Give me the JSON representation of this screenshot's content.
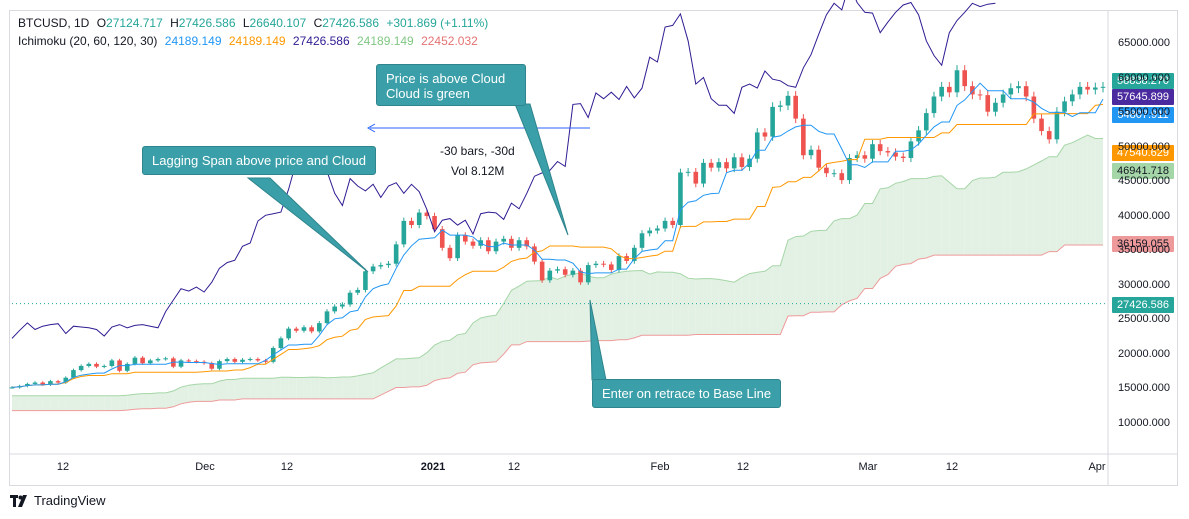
{
  "legend": {
    "symbol_line": "BTCUSD, 1D",
    "open_label": "O",
    "open": "27124.717",
    "high_label": "H",
    "high": "27426.586",
    "low_label": "L",
    "low": "26640.107",
    "close_label": "C",
    "close": "27426.586",
    "change": "+301.869 (+1.11%)",
    "indicator": "Ichimoku (20, 60, 120, 30)",
    "ind_values": [
      "24189.149",
      "24189.149",
      "27426.586",
      "24189.149",
      "22452.032"
    ]
  },
  "annotations": {
    "lagging": "Lagging Span above price and Cloud",
    "price_above_1": "Price is above Cloud",
    "price_above_2": "Cloud is green",
    "enter": "Enter on retrace to Base Line",
    "bars": "-30 bars, -30d",
    "vol": "Vol 8.12M"
  },
  "price_tags": [
    "58838.270",
    "57645.899",
    "54807.911",
    "47540.629",
    "46941.718",
    "36159.055",
    "27426.586"
  ],
  "brand": "TradingView",
  "colors": {
    "up": "#26a69a",
    "down": "#ef5350",
    "conversion": "#2196f3",
    "base": "#ff9800",
    "lagging": "#311b92",
    "span_a": "#a5d6a7",
    "span_b": "#ef9a9a",
    "cloud_bull": "#e3f1e4",
    "cloud_bear": "#fbe6e6",
    "callout": "#3a9fa8"
  },
  "chart_data": {
    "type": "candlestick",
    "ylim": [
      5000,
      70000
    ],
    "yticks": [
      "10000.000",
      "15000.000",
      "20000.000",
      "25000.000",
      "30000.000",
      "35000.000",
      "40000.000",
      "45000.000",
      "50000.000",
      "55000.000",
      "60000.000",
      "65000.000"
    ],
    "xticks": [
      "12",
      "Dec",
      "12",
      "2021",
      "12",
      "Feb",
      "12",
      "Mar",
      "12",
      "Apr"
    ],
    "closes": [
      15300,
      15500,
      15800,
      16000,
      15700,
      16200,
      16000,
      16700,
      17800,
      18400,
      18700,
      18300,
      18400,
      19200,
      17700,
      18700,
      19600,
      18800,
      19200,
      19400,
      19500,
      18300,
      19200,
      19100,
      19000,
      18800,
      18000,
      19100,
      19400,
      19000,
      19300,
      19400,
      19200,
      19000,
      21000,
      22400,
      23800,
      23500,
      24000,
      23400,
      24600,
      26300,
      27000,
      27300,
      29000,
      29400,
      32100,
      32800,
      33000,
      33200,
      36000,
      39400,
      38800,
      40600,
      40100,
      38200,
      35500,
      34000,
      37300,
      36400,
      35800,
      36600,
      35000,
      36400,
      36800,
      35500,
      36600,
      35700,
      33500,
      30800,
      32200,
      32400,
      31600,
      32200,
      30500,
      33000,
      33200,
      33100,
      32300,
      34300,
      33600,
      35500,
      37600,
      38000,
      38300,
      39400,
      38800,
      46400,
      46500,
      44800,
      47800,
      47100,
      47900,
      47000,
      48600,
      47200,
      48400,
      52200,
      51600,
      55900,
      56100,
      57500,
      54200,
      48900,
      49700,
      47100,
      46300,
      46300,
      45300,
      48500,
      48900,
      48400,
      50500,
      49500,
      49300,
      48700,
      48500,
      50900,
      52500,
      55000,
      57400,
      58800,
      58000,
      61200,
      58900,
      57700,
      57600,
      55200,
      56500,
      57700,
      58600,
      58900,
      57400,
      54200,
      52400,
      51200,
      55200,
      56700,
      57700,
      58800,
      58400,
      58700,
      58800
    ]
  }
}
